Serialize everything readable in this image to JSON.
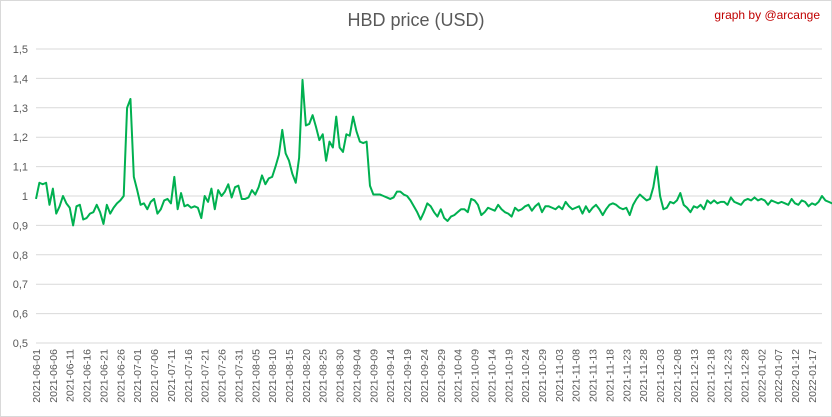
{
  "chart_data": {
    "type": "line",
    "title": "HBD price (USD)",
    "credit": "graph by @arcange",
    "xlabel": "",
    "ylabel": "",
    "ylim": [
      0.5,
      1.5
    ],
    "y_ticks": [
      "0,5",
      "0,6",
      "0,7",
      "0,8",
      "0,9",
      "1",
      "1,1",
      "1,2",
      "1,3",
      "1,4",
      "1,5"
    ],
    "grid": true,
    "line_color": "#00b050",
    "start_date": "2021-06-01",
    "tick_every_days": 5,
    "x_ticks": [
      "2021-06-01",
      "2021-06-06",
      "2021-06-11",
      "2021-06-16",
      "2021-06-21",
      "2021-06-26",
      "2021-07-01",
      "2021-07-06",
      "2021-07-11",
      "2021-07-16",
      "2021-07-21",
      "2021-07-26",
      "2021-07-31",
      "2021-08-05",
      "2021-08-10",
      "2021-08-15",
      "2021-08-20",
      "2021-08-25",
      "2021-08-30",
      "2021-09-04",
      "2021-09-09",
      "2021-09-14",
      "2021-09-19",
      "2021-09-24",
      "2021-09-29",
      "2021-10-04",
      "2021-10-09",
      "2021-10-14",
      "2021-10-19",
      "2021-10-24",
      "2021-10-29",
      "2021-11-03",
      "2021-11-08",
      "2021-11-13",
      "2021-11-18",
      "2021-11-23",
      "2021-11-28",
      "2021-12-03",
      "2021-12-08",
      "2021-12-13",
      "2021-12-18",
      "2021-12-23",
      "2021-12-28",
      "2022-01-02",
      "2022-01-07",
      "2022-01-12",
      "2022-01-17"
    ],
    "series": [
      {
        "values": [
          0.99,
          1.045,
          1.04,
          1.045,
          0.97,
          1.025,
          0.94,
          0.965,
          1.0,
          0.975,
          0.96,
          0.9,
          0.965,
          0.97,
          0.92,
          0.925,
          0.94,
          0.945,
          0.97,
          0.945,
          0.905,
          0.97,
          0.94,
          0.96,
          0.975,
          0.985,
          1.0,
          1.3,
          1.33,
          1.065,
          1.02,
          0.97,
          0.975,
          0.955,
          0.98,
          0.99,
          0.94,
          0.955,
          0.985,
          0.99,
          0.975,
          1.065,
          0.955,
          1.01,
          0.965,
          0.97,
          0.96,
          0.965,
          0.96,
          0.925,
          1.0,
          0.98,
          1.025,
          0.955,
          1.02,
          1.0,
          1.015,
          1.04,
          0.995,
          1.03,
          1.035,
          0.99,
          0.99,
          0.995,
          1.02,
          1.005,
          1.03,
          1.07,
          1.04,
          1.06,
          1.065,
          1.1,
          1.14,
          1.225,
          1.145,
          1.12,
          1.075,
          1.045,
          1.13,
          1.395,
          1.24,
          1.245,
          1.275,
          1.235,
          1.19,
          1.21,
          1.12,
          1.185,
          1.165,
          1.27,
          1.165,
          1.15,
          1.21,
          1.205,
          1.27,
          1.22,
          1.185,
          1.18,
          1.185,
          1.035,
          1.005,
          1.005,
          1.005,
          1.0,
          0.995,
          0.99,
          0.995,
          1.015,
          1.015,
          1.005,
          1.0,
          0.985,
          0.965,
          0.945,
          0.92,
          0.945,
          0.975,
          0.965,
          0.945,
          0.93,
          0.955,
          0.925,
          0.915,
          0.93,
          0.935,
          0.945,
          0.955,
          0.955,
          0.945,
          0.99,
          0.985,
          0.97,
          0.935,
          0.945,
          0.96,
          0.955,
          0.95,
          0.97,
          0.955,
          0.945,
          0.94,
          0.93,
          0.96,
          0.95,
          0.955,
          0.965,
          0.97,
          0.95,
          0.965,
          0.975,
          0.945,
          0.965,
          0.965,
          0.96,
          0.955,
          0.965,
          0.955,
          0.98,
          0.965,
          0.955,
          0.96,
          0.965,
          0.94,
          0.965,
          0.945,
          0.96,
          0.97,
          0.955,
          0.935,
          0.955,
          0.97,
          0.975,
          0.97,
          0.96,
          0.955,
          0.96,
          0.935,
          0.97,
          0.99,
          1.005,
          0.995,
          0.985,
          0.99,
          1.03,
          1.1,
          1.0,
          0.955,
          0.96,
          0.98,
          0.975,
          0.985,
          1.01,
          0.97,
          0.96,
          0.945,
          0.965,
          0.96,
          0.97,
          0.955,
          0.985,
          0.975,
          0.985,
          0.975,
          0.98,
          0.98,
          0.97,
          0.995,
          0.98,
          0.975,
          0.97,
          0.985,
          0.99,
          0.985,
          0.995,
          0.985,
          0.99,
          0.985,
          0.97,
          0.985,
          0.98,
          0.975,
          0.98,
          0.975,
          0.97,
          0.99,
          0.975,
          0.97,
          0.985,
          0.98,
          0.965,
          0.975,
          0.97,
          0.98,
          1.0,
          0.985,
          0.98,
          0.975,
          0.97,
          0.955
        ]
      }
    ]
  }
}
